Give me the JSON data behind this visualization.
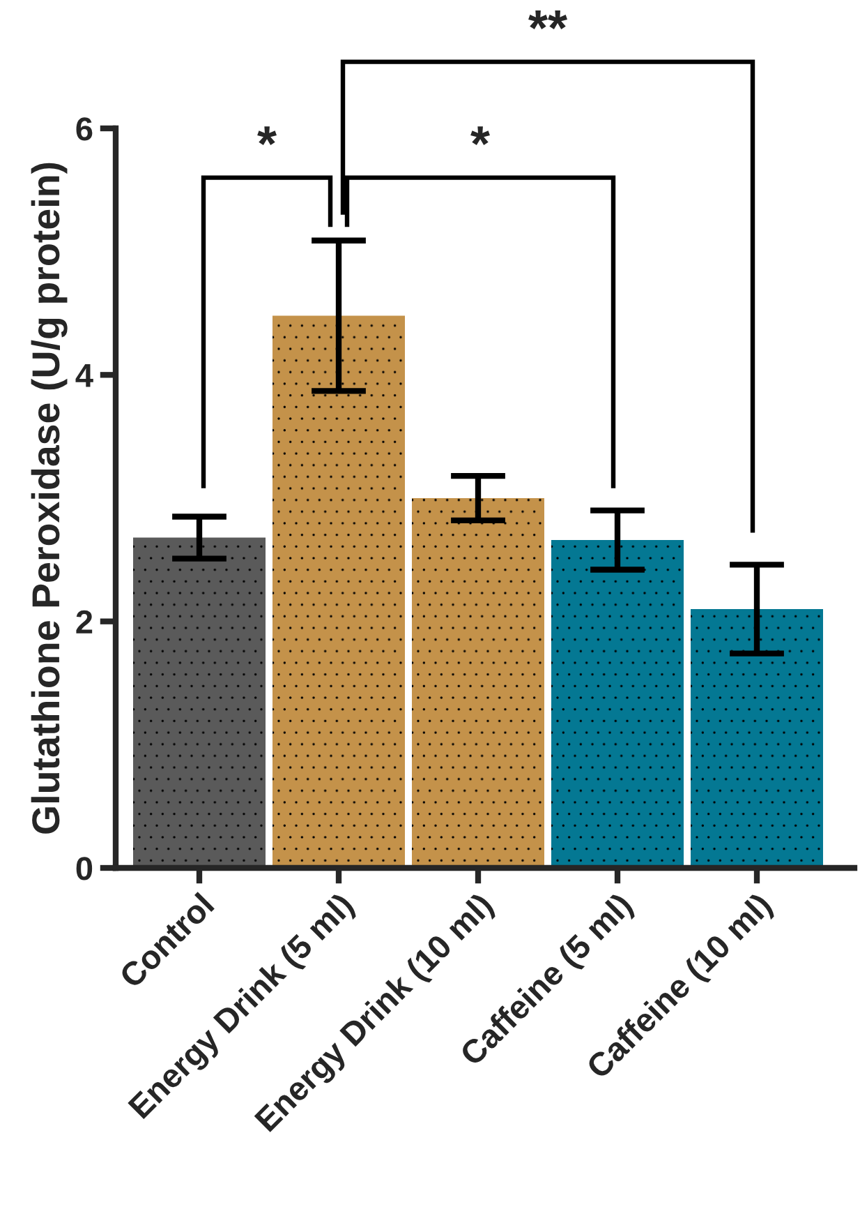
{
  "chart_data": {
    "type": "bar",
    "ylabel": "Glutathione Peroxidase (U/g protein)",
    "categories": [
      "Control",
      "Energy Drink (5 ml)",
      "Energy Drink (10 ml)",
      "Caffeine (5 ml)",
      "Caffeine (10 ml)"
    ],
    "values": [
      2.68,
      4.48,
      3.0,
      2.66,
      2.1
    ],
    "errors": [
      [
        2.51,
        2.85
      ],
      [
        3.87,
        5.09
      ],
      [
        2.82,
        3.18
      ],
      [
        2.42,
        2.9
      ],
      [
        1.74,
        2.46
      ]
    ],
    "colors": [
      "#5a5a5a",
      "#c4924a",
      "#c4924a",
      "#047893",
      "#047893"
    ],
    "ylim": [
      0,
      6
    ],
    "yticks": [
      0,
      2,
      4,
      6
    ],
    "grid": false,
    "annotations": [
      "*",
      "*",
      "**"
    ]
  }
}
